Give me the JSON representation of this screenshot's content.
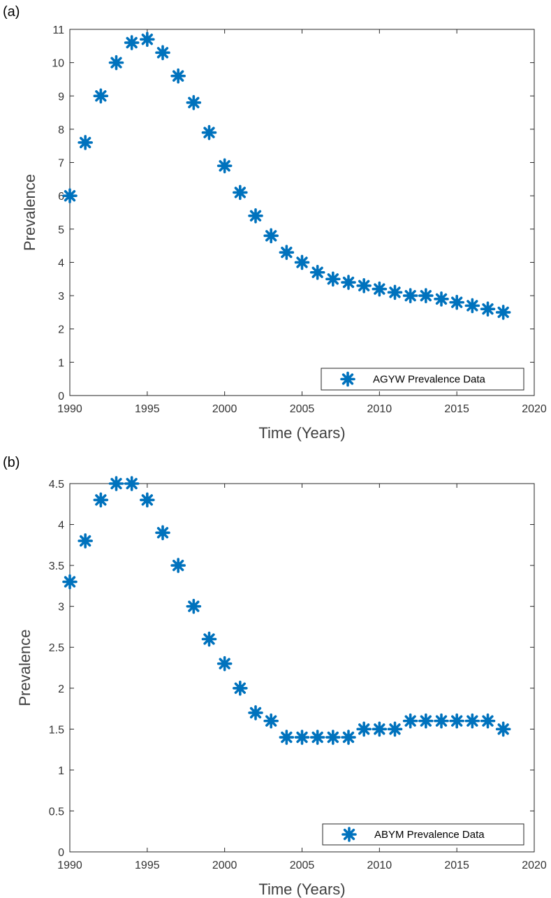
{
  "chart_data": [
    {
      "panel_label": "(a)",
      "type": "scatter",
      "marker": "asterisk",
      "color": "#0072BD",
      "xlabel": "Time (Years)",
      "ylabel": "Prevalence",
      "xlim": [
        1990,
        2020
      ],
      "ylim": [
        0,
        11
      ],
      "xticks": [
        1990,
        1995,
        2000,
        2005,
        2010,
        2015,
        2020
      ],
      "yticks": [
        0,
        1,
        2,
        3,
        4,
        5,
        6,
        7,
        8,
        9,
        10,
        11
      ],
      "legend_position": "bottom-right",
      "series": [
        {
          "name": "AGYW Prevalence Data",
          "x": [
            1990,
            1991,
            1992,
            1993,
            1994,
            1995,
            1996,
            1997,
            1998,
            1999,
            2000,
            2001,
            2002,
            2003,
            2004,
            2005,
            2006,
            2007,
            2008,
            2009,
            2010,
            2011,
            2012,
            2013,
            2014,
            2015,
            2016,
            2017,
            2018
          ],
          "y": [
            6.0,
            7.6,
            9.0,
            10.0,
            10.6,
            10.7,
            10.3,
            9.6,
            8.8,
            7.9,
            6.9,
            6.1,
            5.4,
            4.8,
            4.3,
            4.0,
            3.7,
            3.5,
            3.4,
            3.3,
            3.2,
            3.1,
            3.0,
            3.0,
            2.9,
            2.8,
            2.7,
            2.6,
            2.5
          ]
        }
      ]
    },
    {
      "panel_label": "(b)",
      "type": "scatter",
      "marker": "asterisk",
      "color": "#0072BD",
      "xlabel": "Time (Years)",
      "ylabel": "Prevalence",
      "xlim": [
        1990,
        2020
      ],
      "ylim": [
        0,
        4.5
      ],
      "xticks": [
        1990,
        1995,
        2000,
        2005,
        2010,
        2015,
        2020
      ],
      "yticks": [
        0,
        0.5,
        1,
        1.5,
        2,
        2.5,
        3,
        3.5,
        4,
        4.5
      ],
      "legend_position": "bottom-right",
      "series": [
        {
          "name": "ABYM Prevalence Data",
          "x": [
            1990,
            1991,
            1992,
            1993,
            1994,
            1995,
            1996,
            1997,
            1998,
            1999,
            2000,
            2001,
            2002,
            2003,
            2004,
            2005,
            2006,
            2007,
            2008,
            2009,
            2010,
            2011,
            2012,
            2013,
            2014,
            2015,
            2016,
            2017,
            2018
          ],
          "y": [
            3.3,
            3.8,
            4.3,
            4.5,
            4.5,
            4.3,
            3.9,
            3.5,
            3.0,
            2.6,
            2.3,
            2.0,
            1.7,
            1.6,
            1.4,
            1.4,
            1.4,
            1.4,
            1.4,
            1.5,
            1.5,
            1.5,
            1.6,
            1.6,
            1.6,
            1.6,
            1.6,
            1.6,
            1.5
          ]
        }
      ]
    }
  ]
}
